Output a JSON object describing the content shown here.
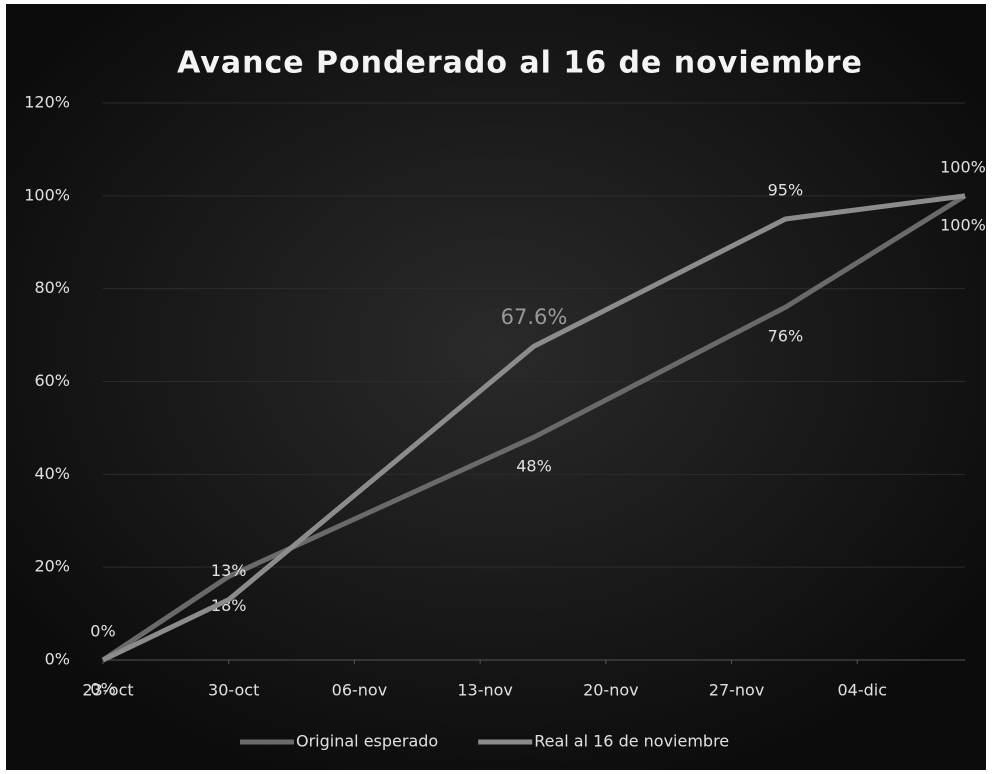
{
  "chart_data": {
    "type": "line",
    "title": "Avance Ponderado al 16 de noviembre",
    "x": [
      "10-23",
      "10-30",
      "11-16",
      "11-30",
      "12-10"
    ],
    "xlim": [
      "10-23",
      "12-10"
    ],
    "xticks": [
      {
        "value": "10-23",
        "label": "23-oct"
      },
      {
        "value": "10-30",
        "label": "30-oct"
      },
      {
        "value": "11-06",
        "label": "06-nov"
      },
      {
        "value": "11-13",
        "label": "13-nov"
      },
      {
        "value": "11-20",
        "label": "20-nov"
      },
      {
        "value": "11-27",
        "label": "27-nov"
      },
      {
        "value": "12-04",
        "label": "04-dic"
      }
    ],
    "ylim": [
      0,
      120
    ],
    "yticks": [
      {
        "value": 0,
        "label": "0%"
      },
      {
        "value": 20,
        "label": "20%"
      },
      {
        "value": 40,
        "label": "40%"
      },
      {
        "value": 60,
        "label": "60%"
      },
      {
        "value": 80,
        "label": "80%"
      },
      {
        "value": 100,
        "label": "100%"
      },
      {
        "value": 120,
        "label": "120%"
      }
    ],
    "legend": "bottom",
    "series": [
      {
        "name": "Original esperado",
        "color": "#6a6a6a",
        "values": [
          0,
          18,
          48,
          76,
          100
        ],
        "value_labels": [
          "0%",
          "18%",
          "48%",
          "76%",
          "100%"
        ]
      },
      {
        "name": "Real al 16 de noviembre",
        "color": "#8c8c8c",
        "values": [
          0,
          13,
          67.6,
          95,
          100
        ],
        "value_labels": [
          "0%",
          "13%",
          "67.6%",
          "95%",
          "100%"
        ]
      }
    ]
  }
}
